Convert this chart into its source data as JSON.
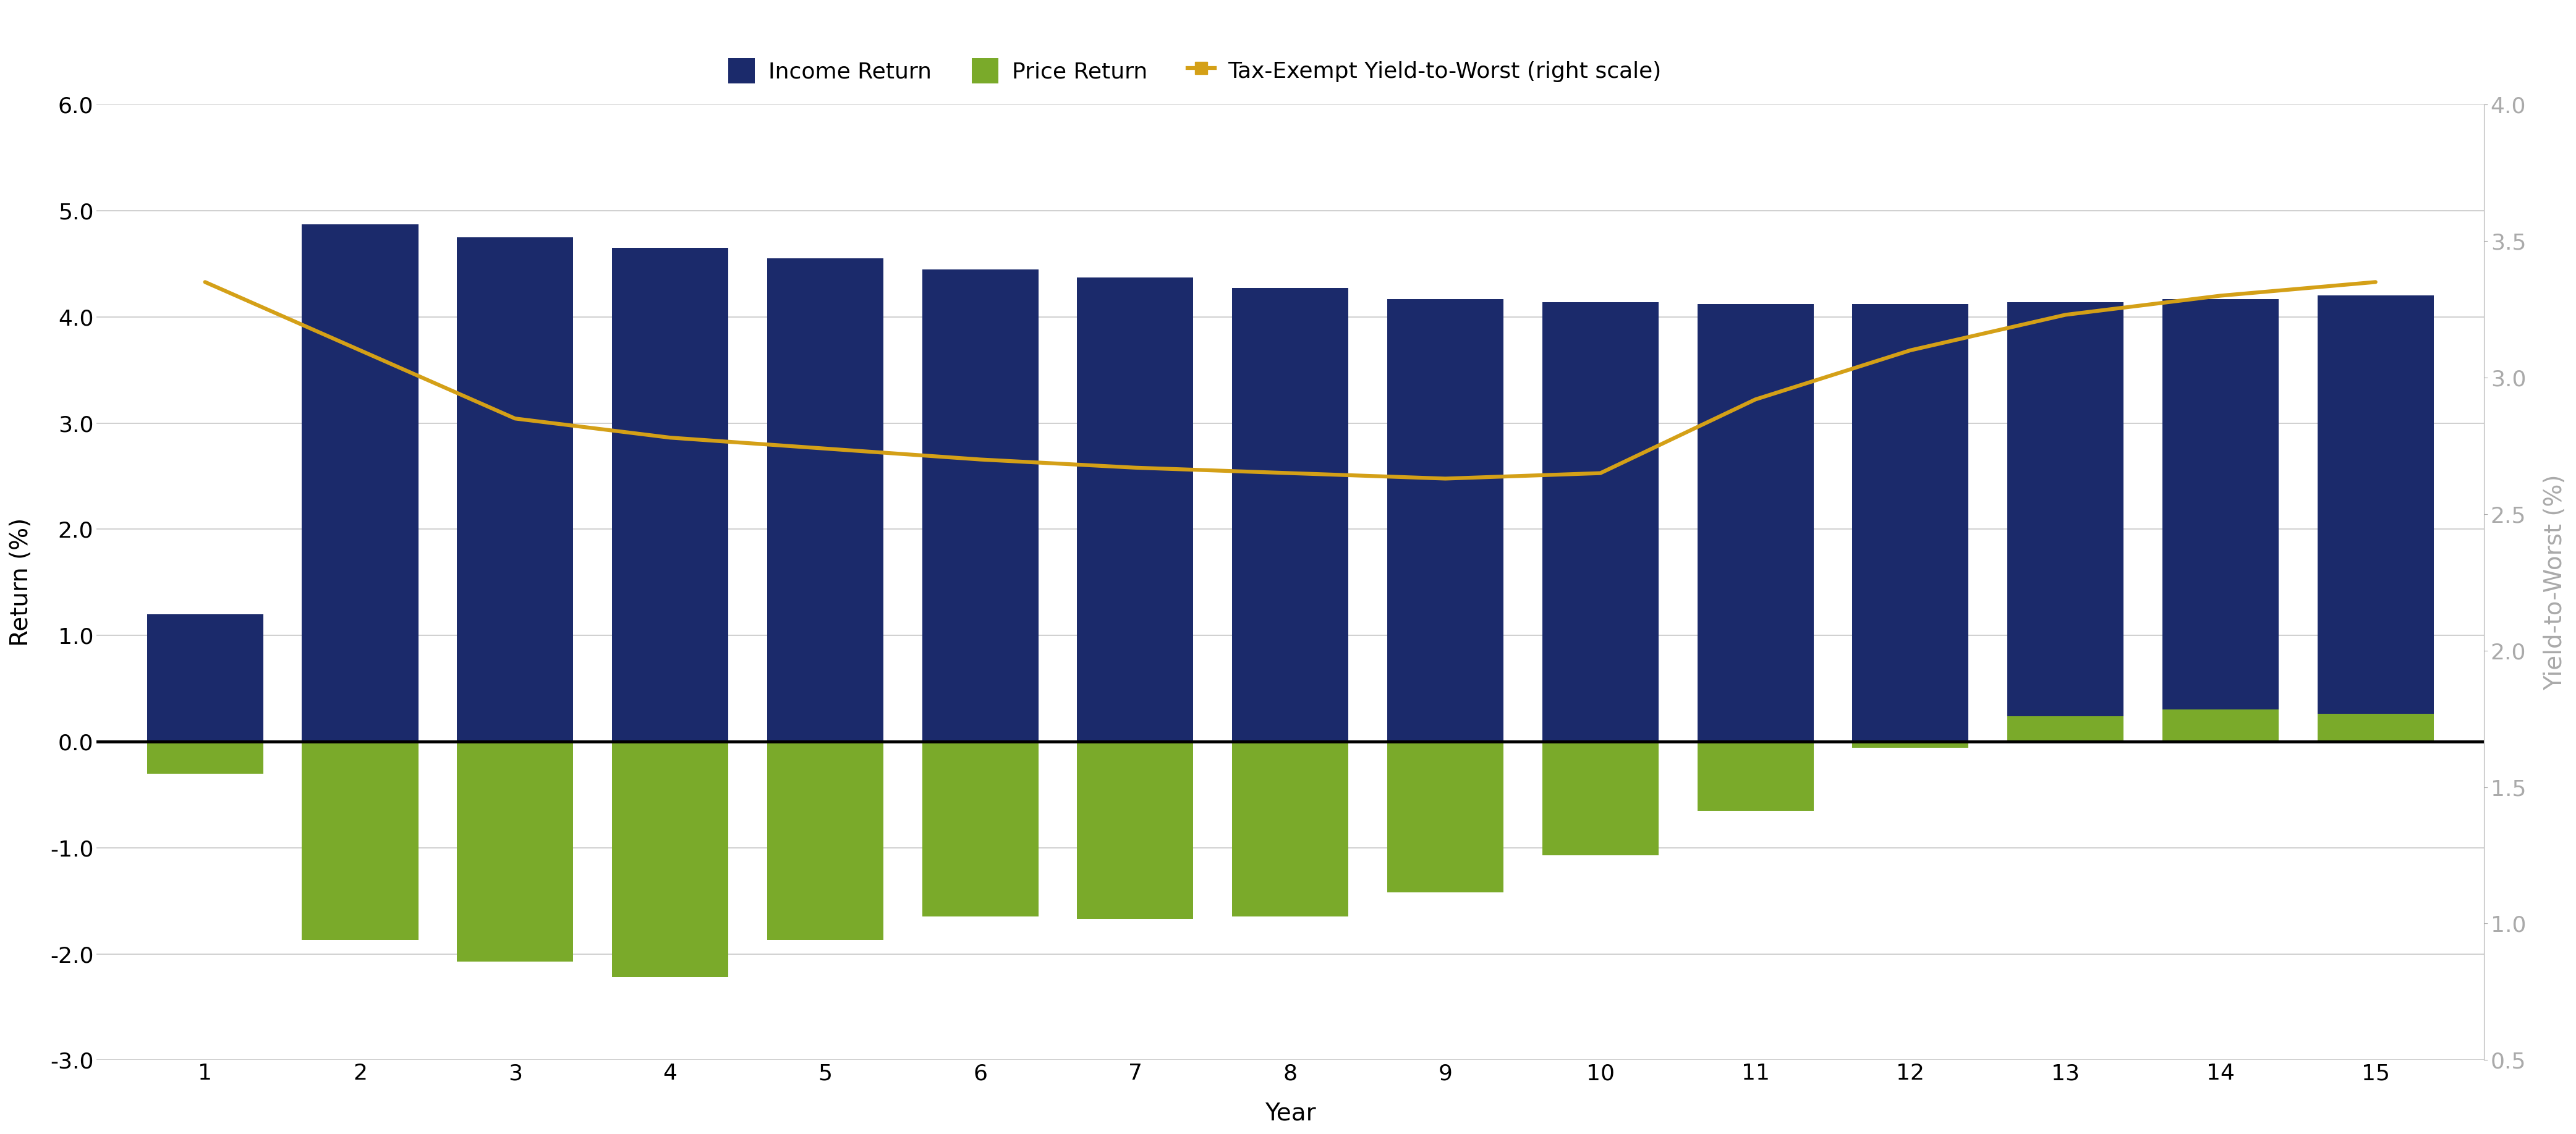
{
  "years": [
    1,
    2,
    3,
    4,
    5,
    6,
    7,
    8,
    9,
    10,
    11,
    12,
    13,
    14,
    15
  ],
  "income_return": [
    1.2,
    4.87,
    4.75,
    4.65,
    4.55,
    4.45,
    4.37,
    4.27,
    4.17,
    4.14,
    4.12,
    4.12,
    4.14,
    4.17,
    4.2
  ],
  "price_return": [
    -0.3,
    -1.87,
    -2.07,
    -2.22,
    -1.87,
    -1.65,
    -1.67,
    -1.65,
    -1.42,
    -1.07,
    -0.65,
    -0.06,
    0.24,
    0.3,
    0.26
  ],
  "yield_to_worst": [
    3.35,
    3.1,
    2.85,
    2.78,
    2.74,
    2.7,
    2.67,
    2.65,
    2.63,
    2.65,
    2.92,
    3.1,
    3.23,
    3.3,
    3.35
  ],
  "income_color": "#1b2a6b",
  "price_color": "#7aaa2a",
  "yield_color": "#d4a017",
  "left_ylim": [
    -3.0,
    6.0
  ],
  "right_ylim": [
    0.5,
    4.0
  ],
  "left_yticks": [
    -3.0,
    -2.0,
    -1.0,
    0.0,
    1.0,
    2.0,
    3.0,
    4.0,
    5.0,
    6.0
  ],
  "right_yticks": [
    0.5,
    1.0,
    1.5,
    2.0,
    2.5,
    3.0,
    3.5,
    4.0
  ],
  "xlabel": "Year",
  "ylabel_left": "Return (%)",
  "ylabel_right": "Yield-to-Worst (%)",
  "legend_income": "Income Return",
  "legend_price": "Price Return",
  "legend_yield": "Tax-Exempt Yield-to-Worst (right scale)",
  "background_color": "#ffffff",
  "zero_line_color": "#000000",
  "grid_color": "#c8c8c8",
  "label_fontsize": 28,
  "tick_fontsize": 26,
  "legend_fontsize": 26,
  "right_tick_color": "#aaaaaa",
  "bar_width": 0.75
}
